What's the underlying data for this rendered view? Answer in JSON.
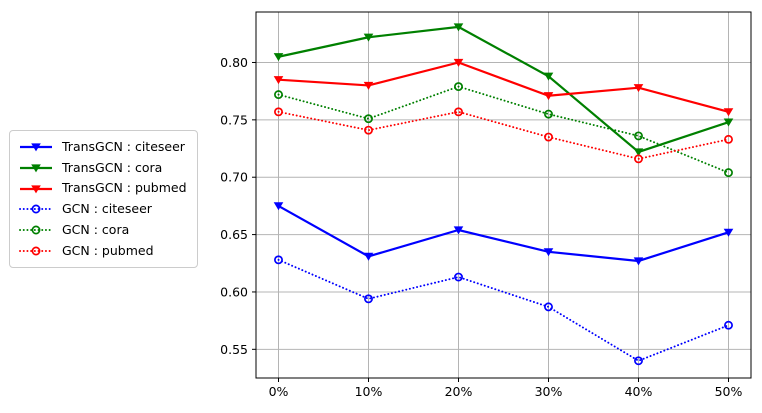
{
  "chart_data": {
    "type": "line",
    "title": "",
    "xlabel": "",
    "ylabel": "",
    "x_values": [
      0,
      10,
      20,
      30,
      40,
      50
    ],
    "x_tick_labels": [
      "0%",
      "10%",
      "20%",
      "30%",
      "40%",
      "50%"
    ],
    "y_tick_values": [
      0.55,
      0.6,
      0.65,
      0.7,
      0.75,
      0.8
    ],
    "y_tick_labels": [
      "0.55",
      "0.60",
      "0.65",
      "0.70",
      "0.75",
      "0.80"
    ],
    "xlim": [
      -2.5,
      52.5
    ],
    "ylim": [
      0.525,
      0.844
    ],
    "grid": true,
    "legend_position": "outside-left",
    "series": [
      {
        "name": "TransGCN : citeseer",
        "color": "#0000ff",
        "line_style": "solid",
        "marker": "triangle-down",
        "values": [
          0.675,
          0.631,
          0.654,
          0.635,
          0.627,
          0.652
        ]
      },
      {
        "name": "TransGCN : cora",
        "color": "#008000",
        "line_style": "solid",
        "marker": "triangle-down",
        "values": [
          0.805,
          0.822,
          0.831,
          0.788,
          0.722,
          0.748
        ]
      },
      {
        "name": "TransGCN : pubmed",
        "color": "#ff0000",
        "line_style": "solid",
        "marker": "triangle-down",
        "values": [
          0.785,
          0.78,
          0.8,
          0.771,
          0.778,
          0.757
        ]
      },
      {
        "name": "GCN : citeseer",
        "color": "#0000ff",
        "line_style": "dotted",
        "marker": "circle-open",
        "values": [
          0.628,
          0.594,
          0.613,
          0.587,
          0.54,
          0.571
        ]
      },
      {
        "name": "GCN : cora",
        "color": "#008000",
        "line_style": "dotted",
        "marker": "circle-open",
        "values": [
          0.772,
          0.751,
          0.779,
          0.755,
          0.736,
          0.704
        ]
      },
      {
        "name": "GCN : pubmed",
        "color": "#ff0000",
        "line_style": "dotted",
        "marker": "circle-open",
        "values": [
          0.757,
          0.741,
          0.757,
          0.735,
          0.716,
          0.733
        ]
      }
    ]
  },
  "colors": {
    "background": "#ffffff",
    "grid": "#b4b4b4",
    "axis": "#000000",
    "tick_text": "#000000",
    "legend_border": "#cccccc"
  }
}
